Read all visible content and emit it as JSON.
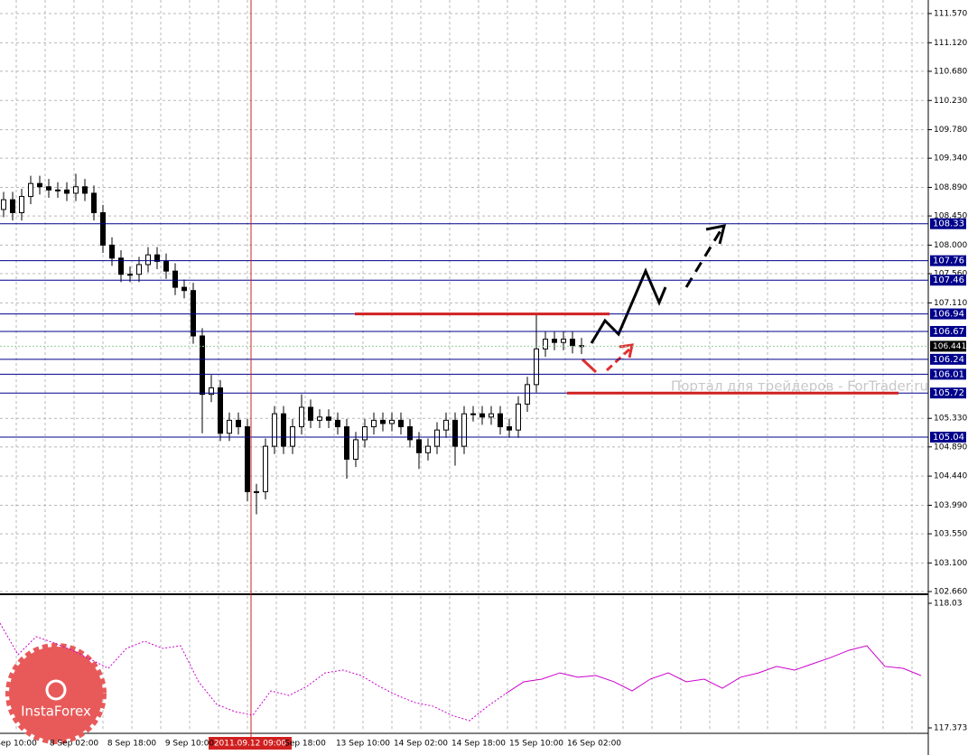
{
  "chart_data": {
    "type": "candlestick",
    "watermark": "Портал для трейдеров - ForTrader.ru",
    "logo": "InstaForex",
    "ylim": [
      102.66,
      111.57
    ],
    "yticks": [
      {
        "value": 111.57,
        "label": "111.570"
      },
      {
        "value": 111.12,
        "label": "111.120"
      },
      {
        "value": 110.68,
        "label": "110.680"
      },
      {
        "value": 110.23,
        "label": "110.230"
      },
      {
        "value": 109.78,
        "label": "109.780"
      },
      {
        "value": 109.34,
        "label": "109.340"
      },
      {
        "value": 108.89,
        "label": "108.890"
      },
      {
        "value": 108.45,
        "label": "108.450"
      },
      {
        "value": 108,
        "label": "108.000"
      },
      {
        "value": 107.56,
        "label": "107.560"
      },
      {
        "value": 107.11,
        "label": "107.110"
      },
      {
        "value": 105.33,
        "label": "105.330"
      },
      {
        "value": 104.89,
        "label": "104.890"
      },
      {
        "value": 104.44,
        "label": "104.440"
      },
      {
        "value": 103.99,
        "label": "103.990"
      },
      {
        "value": 103.55,
        "label": "103.550"
      },
      {
        "value": 103.1,
        "label": "103.100"
      },
      {
        "value": 102.66,
        "label": "102.660"
      }
    ],
    "grid": true,
    "x_labels": [
      "Sep 10:00",
      "8 Sep 02:00",
      "8 Sep 18:00",
      "9 Sep 10:00",
      "",
      "Sep 18:00",
      "13 Sep 10:00",
      "14 Sep 02:00",
      "14 Sep 18:00",
      "15 Sep 10:00",
      "16 Sep 02:00"
    ],
    "crosshair_label": "2011.09.12 09:00",
    "levels": [
      108.33,
      107.76,
      107.46,
      106.94,
      106.67,
      106.24,
      106.01,
      105.72,
      105.04
    ],
    "level_color": "#00008b",
    "current_price": 106.441,
    "red_lines": [
      106.94,
      105.72
    ],
    "open": [
      108.55,
      108.7,
      108.5,
      108.75,
      108.95,
      108.9,
      108.85,
      108.85,
      108.8,
      108.9,
      108.8,
      108.5,
      108.0,
      107.8,
      107.55,
      107.55,
      107.7,
      107.85,
      107.75,
      107.6,
      107.35,
      107.3,
      106.6,
      105.7,
      105.8,
      105.1,
      105.3,
      105.2,
      104.2,
      104.2,
      104.9,
      105.4,
      104.9,
      105.2,
      105.5,
      105.3,
      105.35,
      105.3,
      105.2,
      104.7,
      105.0,
      105.2,
      105.3,
      105.25,
      105.3,
      105.2,
      105.0,
      104.8,
      104.9,
      105.15,
      105.3,
      104.9,
      105.4,
      105.4,
      105.35,
      105.4,
      105.2,
      105.15,
      105.55,
      105.85,
      106.4,
      106.55,
      106.5,
      106.55,
      106.45
    ],
    "high": [
      108.82,
      108.82,
      108.87,
      109.07,
      109.07,
      109.02,
      108.97,
      108.97,
      109.1,
      109.02,
      108.92,
      108.62,
      108.12,
      107.92,
      107.67,
      107.82,
      107.97,
      107.97,
      107.87,
      107.72,
      107.47,
      107.42,
      106.72,
      106.0,
      105.92,
      105.42,
      105.42,
      105.32,
      104.32,
      105.02,
      105.52,
      105.52,
      105.32,
      105.7,
      105.62,
      105.47,
      105.47,
      105.42,
      105.32,
      105.12,
      105.32,
      105.42,
      105.42,
      105.42,
      105.42,
      105.32,
      105.12,
      105.02,
      105.27,
      105.42,
      105.42,
      105.52,
      105.52,
      105.52,
      105.52,
      105.52,
      105.32,
      105.67,
      105.97,
      106.92,
      106.67,
      106.67,
      106.67,
      106.67,
      106.57
    ],
    "low": [
      108.43,
      108.38,
      108.38,
      108.63,
      108.78,
      108.73,
      108.73,
      108.68,
      108.68,
      108.68,
      108.38,
      107.88,
      107.68,
      107.43,
      107.43,
      107.43,
      107.58,
      107.63,
      107.48,
      107.23,
      107.18,
      106.48,
      105.1,
      105.58,
      104.98,
      104.98,
      105.08,
      104.05,
      103.85,
      104.08,
      104.78,
      104.78,
      104.78,
      105.08,
      105.18,
      105.18,
      105.18,
      105.08,
      104.4,
      104.58,
      104.88,
      105.08,
      105.13,
      105.13,
      105.08,
      104.88,
      104.55,
      104.68,
      104.78,
      105.03,
      104.6,
      104.78,
      105.28,
      105.23,
      105.23,
      105.08,
      105.03,
      105.03,
      105.43,
      105.73,
      106.28,
      106.38,
      106.38,
      106.33,
      106.32
    ],
    "close": [
      108.7,
      108.5,
      108.75,
      108.95,
      108.9,
      108.85,
      108.85,
      108.8,
      108.9,
      108.8,
      108.5,
      108.0,
      107.8,
      107.55,
      107.55,
      107.7,
      107.85,
      107.75,
      107.6,
      107.35,
      107.3,
      106.6,
      105.7,
      105.8,
      105.1,
      105.3,
      105.2,
      104.2,
      104.2,
      104.9,
      105.4,
      104.9,
      105.2,
      105.5,
      105.3,
      105.35,
      105.3,
      105.2,
      104.7,
      105.0,
      105.2,
      105.3,
      105.25,
      105.3,
      105.2,
      105.0,
      104.8,
      104.9,
      105.15,
      105.3,
      104.9,
      105.4,
      105.4,
      105.35,
      105.4,
      105.2,
      105.15,
      105.55,
      105.85,
      106.4,
      106.55,
      106.5,
      106.55,
      106.45,
      106.44
    ],
    "indicator": {
      "ylim": [
        117.373,
        118.03
      ],
      "yticks": [
        118.03,
        117.373
      ],
      "color": "#cc00cc",
      "series": [
        {
          "style": "dotted",
          "values": [
            117.925,
            117.759,
            117.854,
            117.821,
            117.782,
            117.735,
            117.687,
            117.792,
            117.83,
            117.792,
            117.806,
            117.616,
            117.497,
            117.459,
            117.44,
            117.568,
            117.544,
            117.592,
            117.663,
            117.678,
            117.649,
            117.592,
            117.544,
            117.506,
            117.487,
            117.44,
            117.411,
            117.487,
            117.554,
            null,
            null,
            null,
            null,
            null,
            null,
            null,
            null,
            null,
            null,
            null,
            null,
            null,
            null,
            null,
            null,
            null,
            null,
            null,
            null,
            null,
            null,
            null
          ]
        },
        {
          "style": "solid",
          "values": [
            null,
            null,
            null,
            null,
            null,
            null,
            null,
            null,
            null,
            null,
            null,
            null,
            null,
            null,
            null,
            null,
            null,
            null,
            null,
            null,
            null,
            null,
            null,
            null,
            null,
            null,
            null,
            null,
            117.554,
            117.616,
            117.63,
            117.663,
            117.64,
            117.649,
            117.616,
            117.568,
            117.63,
            117.663,
            117.616,
            117.63,
            117.582,
            117.64,
            117.663,
            117.697,
            117.678,
            117.711,
            117.744,
            117.782,
            117.806,
            117.697,
            117.687,
            117.649
          ]
        }
      ]
    }
  }
}
